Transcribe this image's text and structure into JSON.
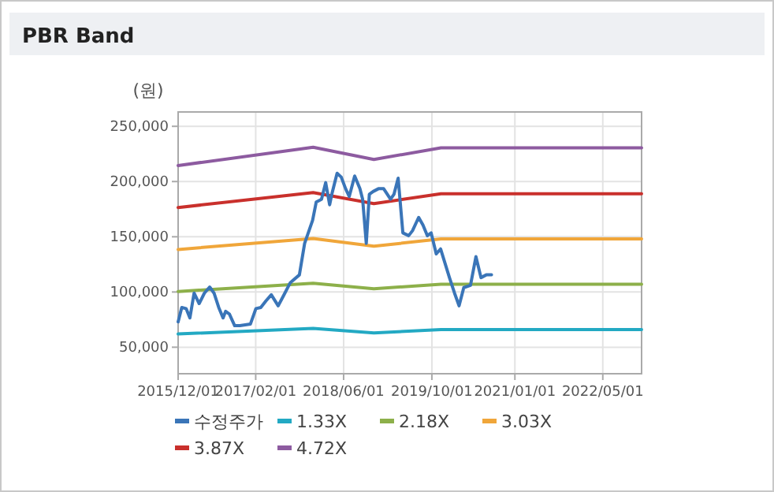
{
  "chart_data": {
    "type": "line",
    "title": "PBR Band",
    "ylabel": "(원)",
    "legend": "bottom",
    "grid": true,
    "xlim": [
      "2015-12-01",
      "2022-12-01"
    ],
    "xticks": [
      {
        "value": "2015-12-01",
        "label": "2015/12/01"
      },
      {
        "value": "2017-02-01",
        "label": "2017/02/01"
      },
      {
        "value": "2018-06-01",
        "label": "2018/06/01"
      },
      {
        "value": "2019-10-01",
        "label": "2019/10/01"
      },
      {
        "value": "2021-01-01",
        "label": "2021/01/01"
      },
      {
        "value": "2022-05-01",
        "label": "2022/05/01"
      }
    ],
    "ylim": [
      26000,
      263000
    ],
    "yticks": [
      {
        "value": 50000,
        "label": "50,000"
      },
      {
        "value": 100000,
        "label": "100,000"
      },
      {
        "value": 150000,
        "label": "150,000"
      },
      {
        "value": 200000,
        "label": "200,000"
      },
      {
        "value": 250000,
        "label": "250,000"
      }
    ],
    "series": [
      {
        "name": "수정주가",
        "color": "#3a75b8",
        "x": [
          "2015-12-01",
          "2015-12-21",
          "2016-01-14",
          "2016-02-04",
          "2016-02-27",
          "2016-03-26",
          "2016-04-24",
          "2016-05-23",
          "2016-06-16",
          "2016-07-12",
          "2016-08-05",
          "2016-08-19",
          "2016-09-09",
          "2016-10-08",
          "2016-11-06",
          "2017-01-03",
          "2017-02-02",
          "2017-03-01",
          "2017-03-30",
          "2017-04-28",
          "2017-06-05",
          "2017-07-04",
          "2017-08-11",
          "2017-09-30",
          "2017-10-29",
          "2017-12-12",
          "2018-01-01",
          "2018-01-30",
          "2018-02-22",
          "2018-03-16",
          "2018-03-28",
          "2018-04-26",
          "2018-05-19",
          "2018-06-12",
          "2018-07-02",
          "2018-08-01",
          "2018-08-30",
          "2018-09-14",
          "2018-10-04",
          "2018-10-21",
          "2018-11-11",
          "2018-12-10",
          "2019-01-08",
          "2019-02-15",
          "2019-03-06",
          "2019-03-29",
          "2019-04-24",
          "2019-05-26",
          "2019-06-16",
          "2019-07-20",
          "2019-08-13",
          "2019-09-06",
          "2019-09-27",
          "2019-10-25",
          "2019-11-18",
          "2020-01-06",
          "2020-02-03",
          "2020-02-28",
          "2020-03-25",
          "2020-05-01",
          "2020-05-31",
          "2020-06-28",
          "2020-07-27",
          "2020-08-25"
        ],
        "values": [
          73000,
          86000,
          85000,
          76500,
          99000,
          89500,
          99000,
          104500,
          99000,
          86000,
          76500,
          82500,
          80000,
          69500,
          69500,
          71000,
          85000,
          86000,
          92000,
          97500,
          87500,
          96500,
          108500,
          115500,
          144000,
          165000,
          181500,
          184000,
          199000,
          179000,
          188500,
          207500,
          204000,
          193500,
          186500,
          205000,
          193500,
          184000,
          144000,
          188500,
          191000,
          193500,
          193500,
          184000,
          188500,
          203000,
          153500,
          151000,
          155500,
          167500,
          160500,
          151000,
          153500,
          134500,
          139000,
          113000,
          99000,
          87500,
          104000,
          106000,
          132000,
          113000,
          115500,
          115500
        ]
      },
      {
        "name": "1.33X",
        "color": "#23a9c3",
        "x": [
          "2015-12-01",
          "2017-12-15",
          "2018-11-15",
          "2019-11-20",
          "2022-12-01"
        ],
        "values": [
          62000,
          67000,
          63000,
          66000,
          66000
        ]
      },
      {
        "name": "2.18X",
        "color": "#8db04a",
        "x": [
          "2015-12-01",
          "2017-12-15",
          "2018-11-15",
          "2019-11-20",
          "2022-12-01"
        ],
        "values": [
          100500,
          108000,
          103000,
          107000,
          107000
        ]
      },
      {
        "name": "3.03X",
        "color": "#f0a63a",
        "x": [
          "2015-12-01",
          "2017-12-15",
          "2018-11-15",
          "2019-11-20",
          "2022-12-01"
        ],
        "values": [
          138500,
          148500,
          141500,
          148000,
          148000
        ]
      },
      {
        "name": "3.87X",
        "color": "#c9302c",
        "x": [
          "2015-12-01",
          "2017-12-15",
          "2018-11-15",
          "2019-11-20",
          "2022-12-01"
        ],
        "values": [
          176500,
          190000,
          180000,
          189000,
          189000
        ]
      },
      {
        "name": "4.72X",
        "color": "#8d5ba0",
        "x": [
          "2015-12-01",
          "2017-12-15",
          "2018-11-15",
          "2019-11-20",
          "2022-12-01"
        ],
        "values": [
          214500,
          231000,
          220000,
          230500,
          230500
        ]
      }
    ]
  }
}
